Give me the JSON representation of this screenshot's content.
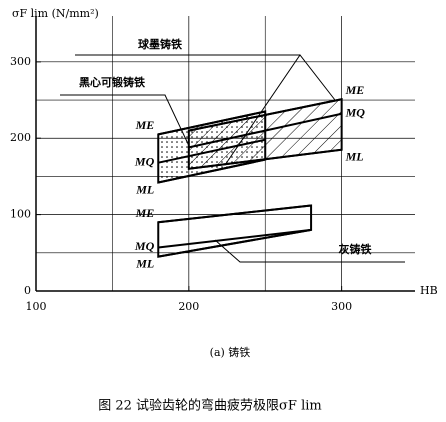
{
  "chart_data": {
    "type": "region",
    "title": "(a) 铸铁",
    "caption": "图 22  试验齿轮的弯曲疲劳极限σF lim",
    "y_label": "σF lim (N/mm²)",
    "x_label": "HB",
    "xlim": [
      100,
      348
    ],
    "ylim": [
      0,
      360
    ],
    "xticks": [
      100,
      200,
      300
    ],
    "yticks": [
      0,
      100,
      200,
      300
    ],
    "xminor": [
      150,
      250
    ],
    "yminor": [
      50,
      150,
      250
    ],
    "grid": true,
    "regions": [
      {
        "name": "球墨铸铁",
        "pattern": "hatch",
        "label_side": "right",
        "lines": [
          {
            "label": "ME",
            "x": [
              200,
              300
            ],
            "y": [
              210,
              251
            ]
          },
          {
            "label": "MQ",
            "x": [
              200,
              300
            ],
            "y": [
              188,
              232
            ]
          },
          {
            "label": "ML",
            "x": [
              200,
              300
            ],
            "y": [
              160,
              185
            ]
          }
        ]
      },
      {
        "name": "黑心可锻铸铁",
        "pattern": "dots",
        "label_side": "left",
        "lines": [
          {
            "label": "ME",
            "x": [
              180,
              250
            ],
            "y": [
              205,
              235
            ]
          },
          {
            "label": "MQ",
            "x": [
              180,
              250
            ],
            "y": [
              168,
              198
            ]
          },
          {
            "label": "ML",
            "x": [
              180,
              250
            ],
            "y": [
              142,
              172
            ]
          }
        ]
      },
      {
        "name": "灰铸铁",
        "pattern": "none",
        "label_side": "left",
        "lines": [
          {
            "label": "ME",
            "x": [
              180,
              280
            ],
            "y": [
              90,
              112
            ]
          },
          {
            "label": "MQ",
            "x": [
              180,
              280
            ],
            "y": [
              57,
              80
            ]
          },
          {
            "label": "ML",
            "x": [
              180,
              280
            ],
            "y": [
              45,
              80
            ]
          }
        ]
      }
    ]
  }
}
